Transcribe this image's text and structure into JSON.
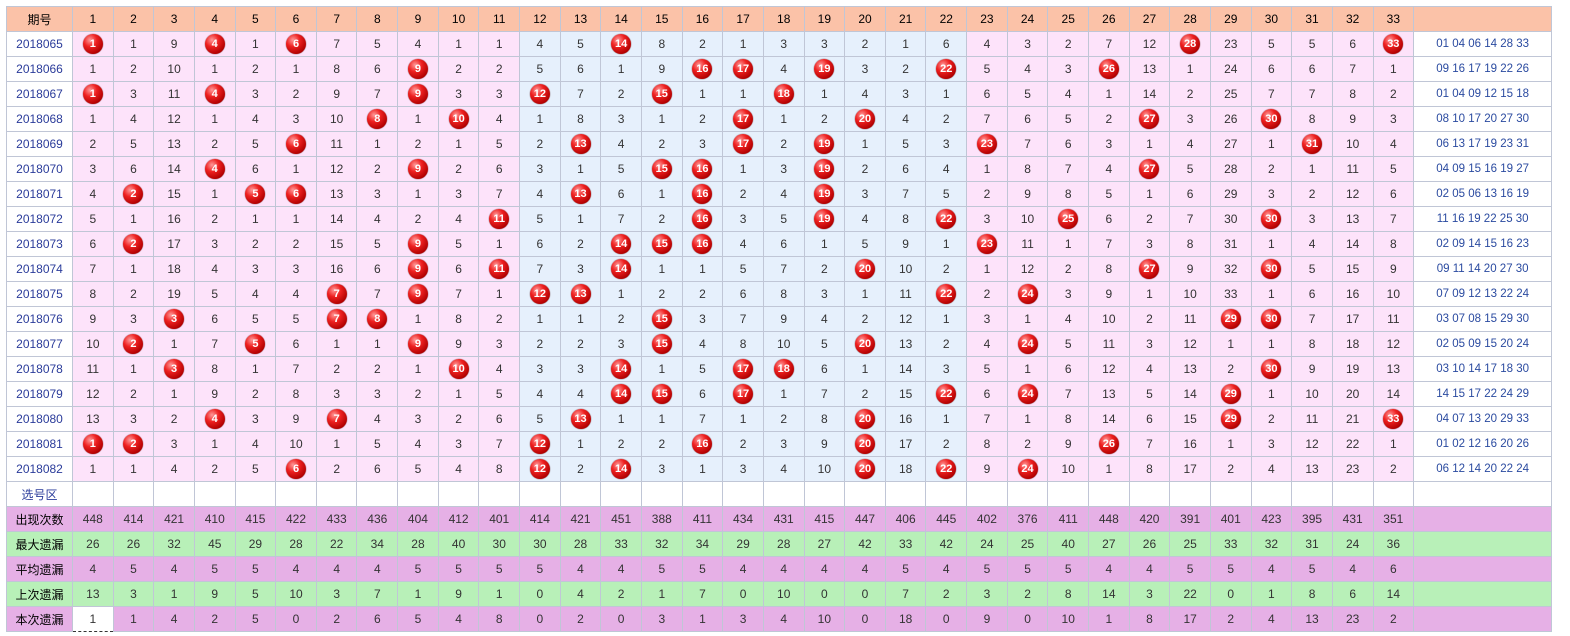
{
  "header": {
    "period_label": "期号",
    "numbers": [
      "1",
      "2",
      "3",
      "4",
      "5",
      "6",
      "7",
      "8",
      "9",
      "10",
      "11",
      "12",
      "13",
      "14",
      "15",
      "16",
      "17",
      "18",
      "19",
      "20",
      "21",
      "22",
      "23",
      "24",
      "25",
      "26",
      "27",
      "28",
      "29",
      "30",
      "31",
      "32",
      "33"
    ],
    "last_label": ""
  },
  "rows": [
    {
      "period": "2018065",
      "cells": [
        "1",
        "1",
        "9",
        "4",
        "1",
        "6",
        "7",
        "5",
        "4",
        "1",
        "1",
        "4",
        "5",
        "14",
        "8",
        "2",
        "1",
        "3",
        "3",
        "2",
        "1",
        "6",
        "4",
        "3",
        "2",
        "7",
        "12",
        "28",
        "23",
        "5",
        "5",
        "6",
        "33"
      ],
      "hits": [
        1,
        4,
        6,
        14,
        28,
        33
      ],
      "result": "01 04 06 14 28 33"
    },
    {
      "period": "2018066",
      "cells": [
        "1",
        "2",
        "10",
        "1",
        "2",
        "1",
        "8",
        "6",
        "9",
        "2",
        "2",
        "5",
        "6",
        "1",
        "9",
        "16",
        "17",
        "4",
        "19",
        "3",
        "2",
        "22",
        "5",
        "4",
        "3",
        "26",
        "13",
        "1",
        "24",
        "6",
        "6",
        "7",
        "1"
      ],
      "hits": [
        9,
        16,
        17,
        19,
        22,
        26
      ],
      "result": "09 16 17 19 22 26"
    },
    {
      "period": "2018067",
      "cells": [
        "1",
        "3",
        "11",
        "4",
        "3",
        "2",
        "9",
        "7",
        "9",
        "3",
        "3",
        "12",
        "7",
        "2",
        "15",
        "1",
        "1",
        "18",
        "1",
        "4",
        "3",
        "1",
        "6",
        "5",
        "4",
        "1",
        "14",
        "2",
        "25",
        "7",
        "7",
        "8",
        "2"
      ],
      "hits": [
        1,
        4,
        9,
        12,
        15,
        18
      ],
      "result": "01 04 09 12 15 18"
    },
    {
      "period": "2018068",
      "cells": [
        "1",
        "4",
        "12",
        "1",
        "4",
        "3",
        "10",
        "8",
        "1",
        "10",
        "4",
        "1",
        "8",
        "3",
        "1",
        "2",
        "17",
        "1",
        "2",
        "20",
        "4",
        "2",
        "7",
        "6",
        "5",
        "2",
        "27",
        "3",
        "26",
        "30",
        "8",
        "9",
        "3"
      ],
      "hits": [
        8,
        10,
        17,
        20,
        27,
        30
      ],
      "result": "08 10 17 20 27 30"
    },
    {
      "period": "2018069",
      "cells": [
        "2",
        "5",
        "13",
        "2",
        "5",
        "6",
        "11",
        "1",
        "2",
        "1",
        "5",
        "2",
        "13",
        "4",
        "2",
        "3",
        "17",
        "2",
        "19",
        "1",
        "5",
        "3",
        "23",
        "7",
        "6",
        "3",
        "1",
        "4",
        "27",
        "1",
        "31",
        "10",
        "4"
      ],
      "hits": [
        6,
        13,
        17,
        19,
        23,
        31
      ],
      "result": "06 13 17 19 23 31"
    },
    {
      "period": "2018070",
      "cells": [
        "3",
        "6",
        "14",
        "4",
        "6",
        "1",
        "12",
        "2",
        "9",
        "2",
        "6",
        "3",
        "1",
        "5",
        "15",
        "16",
        "1",
        "3",
        "19",
        "2",
        "6",
        "4",
        "1",
        "8",
        "7",
        "4",
        "27",
        "5",
        "28",
        "2",
        "1",
        "11",
        "5"
      ],
      "hits": [
        4,
        9,
        15,
        16,
        19,
        27
      ],
      "result": "04 09 15 16 19 27"
    },
    {
      "period": "2018071",
      "cells": [
        "4",
        "2",
        "15",
        "1",
        "5",
        "6",
        "13",
        "3",
        "1",
        "3",
        "7",
        "4",
        "13",
        "6",
        "1",
        "16",
        "2",
        "4",
        "19",
        "3",
        "7",
        "5",
        "2",
        "9",
        "8",
        "5",
        "1",
        "6",
        "29",
        "3",
        "2",
        "12",
        "6"
      ],
      "hits": [
        2,
        5,
        6,
        13,
        16,
        19
      ],
      "result": "02 05 06 13 16 19"
    },
    {
      "period": "2018072",
      "cells": [
        "5",
        "1",
        "16",
        "2",
        "1",
        "1",
        "14",
        "4",
        "2",
        "4",
        "11",
        "5",
        "1",
        "7",
        "2",
        "16",
        "3",
        "5",
        "19",
        "4",
        "8",
        "22",
        "3",
        "10",
        "25",
        "6",
        "2",
        "7",
        "30",
        "30",
        "3",
        "13",
        "7"
      ],
      "hits": [
        11,
        16,
        19,
        22,
        25,
        30
      ],
      "result": "11 16 19 22 25 30"
    },
    {
      "period": "2018073",
      "cells": [
        "6",
        "2",
        "17",
        "3",
        "2",
        "2",
        "15",
        "5",
        "9",
        "5",
        "1",
        "6",
        "2",
        "14",
        "15",
        "16",
        "4",
        "6",
        "1",
        "5",
        "9",
        "1",
        "23",
        "11",
        "1",
        "7",
        "3",
        "8",
        "31",
        "1",
        "4",
        "14",
        "8"
      ],
      "hits": [
        2,
        9,
        14,
        15,
        16,
        23
      ],
      "result": "02 09 14 15 16 23"
    },
    {
      "period": "2018074",
      "cells": [
        "7",
        "1",
        "18",
        "4",
        "3",
        "3",
        "16",
        "6",
        "9",
        "6",
        "11",
        "7",
        "3",
        "14",
        "1",
        "1",
        "5",
        "7",
        "2",
        "20",
        "10",
        "2",
        "1",
        "12",
        "2",
        "8",
        "27",
        "9",
        "32",
        "30",
        "5",
        "15",
        "9"
      ],
      "hits": [
        9,
        11,
        14,
        20,
        27,
        30
      ],
      "result": "09 11 14 20 27 30"
    },
    {
      "period": "2018075",
      "cells": [
        "8",
        "2",
        "19",
        "5",
        "4",
        "4",
        "7",
        "7",
        "9",
        "7",
        "1",
        "12",
        "13",
        "1",
        "2",
        "2",
        "6",
        "8",
        "3",
        "1",
        "11",
        "22",
        "2",
        "24",
        "3",
        "9",
        "1",
        "10",
        "33",
        "1",
        "6",
        "16",
        "10"
      ],
      "hits": [
        7,
        9,
        12,
        13,
        22,
        24
      ],
      "result": "07 09 12 13 22 24"
    },
    {
      "period": "2018076",
      "cells": [
        "9",
        "3",
        "3",
        "6",
        "5",
        "5",
        "7",
        "8",
        "1",
        "8",
        "2",
        "1",
        "1",
        "2",
        "15",
        "3",
        "7",
        "9",
        "4",
        "2",
        "12",
        "1",
        "3",
        "1",
        "4",
        "10",
        "2",
        "11",
        "29",
        "30",
        "7",
        "17",
        "11"
      ],
      "hits": [
        3,
        7,
        8,
        15,
        29,
        30
      ],
      "result": "03 07 08 15 29 30"
    },
    {
      "period": "2018077",
      "cells": [
        "10",
        "2",
        "1",
        "7",
        "5",
        "6",
        "1",
        "1",
        "9",
        "9",
        "3",
        "2",
        "2",
        "3",
        "15",
        "4",
        "8",
        "10",
        "5",
        "20",
        "13",
        "2",
        "4",
        "24",
        "5",
        "11",
        "3",
        "12",
        "1",
        "1",
        "8",
        "18",
        "12"
      ],
      "hits": [
        2,
        5,
        9,
        15,
        20,
        24
      ],
      "result": "02 05 09 15 20 24"
    },
    {
      "period": "2018078",
      "cells": [
        "11",
        "1",
        "3",
        "8",
        "1",
        "7",
        "2",
        "2",
        "1",
        "10",
        "4",
        "3",
        "3",
        "14",
        "1",
        "5",
        "17",
        "18",
        "6",
        "1",
        "14",
        "3",
        "5",
        "1",
        "6",
        "12",
        "4",
        "13",
        "2",
        "30",
        "9",
        "19",
        "13"
      ],
      "hits": [
        3,
        10,
        14,
        17,
        18,
        30
      ],
      "result": "03 10 14 17 18 30"
    },
    {
      "period": "2018079",
      "cells": [
        "12",
        "2",
        "1",
        "9",
        "2",
        "8",
        "3",
        "3",
        "2",
        "1",
        "5",
        "4",
        "4",
        "14",
        "15",
        "6",
        "17",
        "1",
        "7",
        "2",
        "15",
        "22",
        "6",
        "24",
        "7",
        "13",
        "5",
        "14",
        "29",
        "1",
        "10",
        "20",
        "14"
      ],
      "hits": [
        14,
        15,
        17,
        22,
        24,
        29
      ],
      "result": "14 15 17 22 24 29"
    },
    {
      "period": "2018080",
      "cells": [
        "13",
        "3",
        "2",
        "4",
        "3",
        "9",
        "7",
        "4",
        "3",
        "2",
        "6",
        "5",
        "13",
        "1",
        "1",
        "7",
        "1",
        "2",
        "8",
        "20",
        "16",
        "1",
        "7",
        "1",
        "8",
        "14",
        "6",
        "15",
        "29",
        "2",
        "11",
        "21",
        "33"
      ],
      "hits": [
        4,
        7,
        13,
        20,
        29,
        33
      ],
      "result": "04 07 13 20 29 33"
    },
    {
      "period": "2018081",
      "cells": [
        "1",
        "2",
        "3",
        "1",
        "4",
        "10",
        "1",
        "5",
        "4",
        "3",
        "7",
        "12",
        "1",
        "2",
        "2",
        "16",
        "2",
        "3",
        "9",
        "20",
        "17",
        "2",
        "8",
        "2",
        "9",
        "26",
        "7",
        "16",
        "1",
        "3",
        "12",
        "22",
        "1"
      ],
      "hits": [
        1,
        2,
        12,
        16,
        20,
        26
      ],
      "result": "01 02 12 16 20 26"
    },
    {
      "period": "2018082",
      "cells": [
        "1",
        "1",
        "4",
        "2",
        "5",
        "6",
        "2",
        "6",
        "5",
        "4",
        "8",
        "12",
        "2",
        "14",
        "3",
        "1",
        "3",
        "4",
        "10",
        "20",
        "18",
        "22",
        "9",
        "24",
        "10",
        "1",
        "8",
        "17",
        "2",
        "4",
        "13",
        "23",
        "2"
      ],
      "hits": [
        6,
        12,
        14,
        20,
        22,
        24
      ],
      "result": "06 12 14 20 22 24"
    }
  ],
  "xuan_label": "选号区",
  "stats": [
    {
      "label": "出现次数",
      "values": [
        "448",
        "414",
        "421",
        "410",
        "415",
        "422",
        "433",
        "436",
        "404",
        "412",
        "401",
        "414",
        "421",
        "451",
        "388",
        "411",
        "434",
        "431",
        "415",
        "447",
        "406",
        "445",
        "402",
        "376",
        "411",
        "448",
        "420",
        "391",
        "401",
        "423",
        "395",
        "431",
        "351"
      ]
    },
    {
      "label": "最大遗漏",
      "values": [
        "26",
        "26",
        "32",
        "45",
        "29",
        "28",
        "22",
        "34",
        "28",
        "40",
        "30",
        "30",
        "28",
        "33",
        "32",
        "34",
        "29",
        "28",
        "27",
        "42",
        "33",
        "42",
        "24",
        "25",
        "40",
        "27",
        "26",
        "25",
        "33",
        "32",
        "31",
        "24",
        "36"
      ]
    },
    {
      "label": "平均遗漏",
      "values": [
        "4",
        "5",
        "4",
        "5",
        "5",
        "4",
        "4",
        "4",
        "5",
        "5",
        "5",
        "5",
        "4",
        "4",
        "5",
        "5",
        "4",
        "4",
        "4",
        "4",
        "5",
        "4",
        "5",
        "5",
        "5",
        "4",
        "4",
        "5",
        "5",
        "4",
        "5",
        "4",
        "6"
      ]
    },
    {
      "label": "上次遗漏",
      "values": [
        "13",
        "3",
        "1",
        "9",
        "5",
        "10",
        "3",
        "7",
        "1",
        "9",
        "1",
        "0",
        "4",
        "2",
        "1",
        "7",
        "0",
        "10",
        "0",
        "0",
        "7",
        "2",
        "3",
        "2",
        "8",
        "14",
        "3",
        "22",
        "0",
        "1",
        "8",
        "6",
        "14"
      ]
    },
    {
      "label": "本次遗漏",
      "values": [
        "1",
        "1",
        "4",
        "2",
        "5",
        "0",
        "2",
        "6",
        "5",
        "4",
        "8",
        "0",
        "2",
        "0",
        "3",
        "1",
        "3",
        "4",
        "10",
        "0",
        "18",
        "0",
        "9",
        "0",
        "10",
        "1",
        "8",
        "17",
        "2",
        "4",
        "13",
        "23",
        "2"
      ]
    }
  ],
  "colors": {
    "header": "#fbc2a8",
    "zone_pink": "#fde3fa",
    "zone_blue": "#e6f0fc",
    "ball": "#d00000",
    "stat_purple": "#e6b0e6",
    "stat_green": "#b8f0b8"
  }
}
